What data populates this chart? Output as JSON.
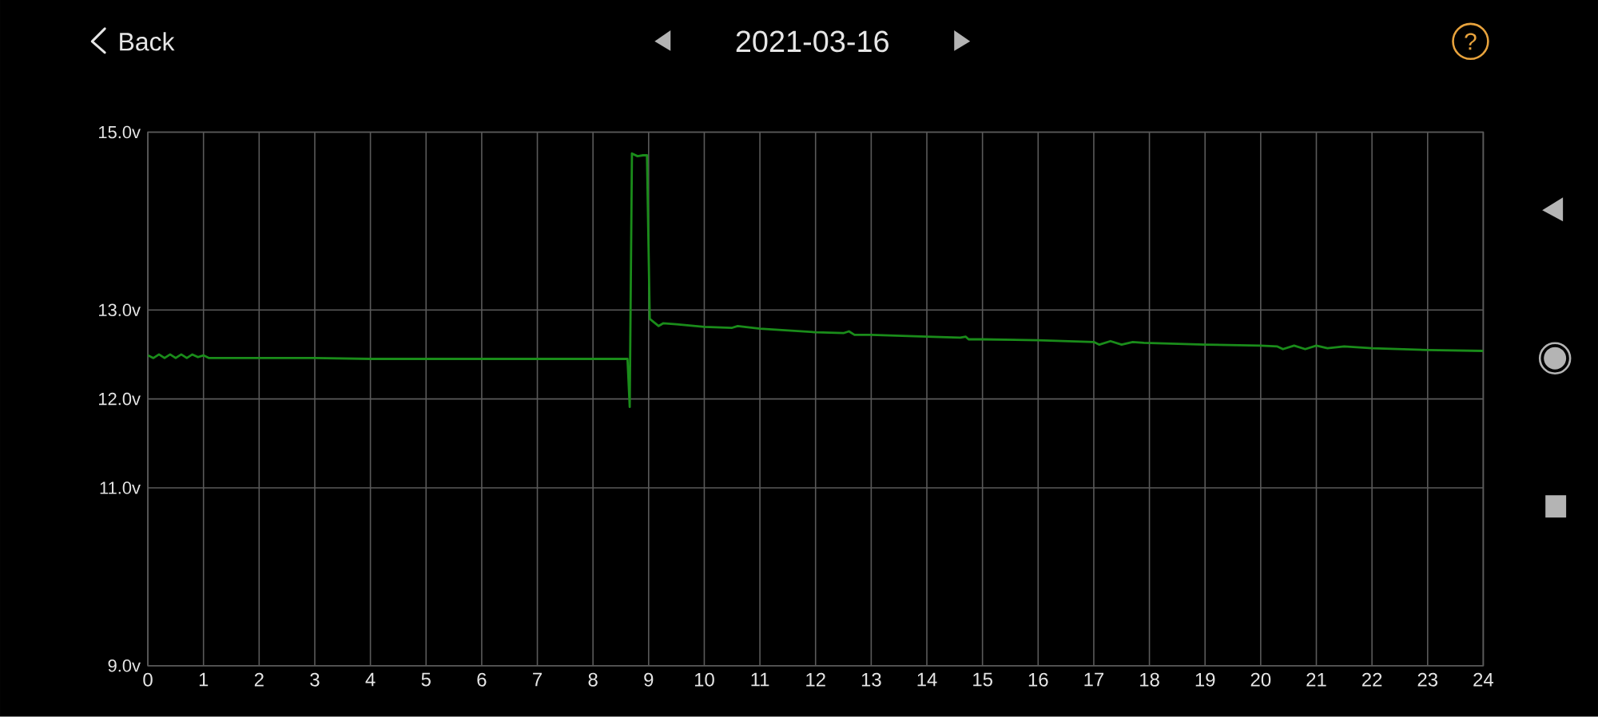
{
  "chart_data": {
    "type": "line",
    "title": "2021-03-16",
    "annotations": [
      "Back",
      "?"
    ],
    "x": [
      0.0,
      0.1,
      0.2,
      0.3,
      0.4,
      0.5,
      0.6,
      0.7,
      0.8,
      0.9,
      1.0,
      1.1,
      2.0,
      3.0,
      4.0,
      5.0,
      6.0,
      7.0,
      8.0,
      8.62,
      8.66,
      8.7,
      8.8,
      8.9,
      8.97,
      9.02,
      9.18,
      9.26,
      9.5,
      10.0,
      10.5,
      10.6,
      11.0,
      12.0,
      12.5,
      12.6,
      12.7,
      13.0,
      14.0,
      14.6,
      14.7,
      14.75,
      15.0,
      16.0,
      17.0,
      17.1,
      17.3,
      17.5,
      17.7,
      17.9,
      19.0,
      20.0,
      20.3,
      20.4,
      20.6,
      20.8,
      21.0,
      21.2,
      21.5,
      22.0,
      23.0,
      24.0
    ],
    "series": [
      {
        "color": "#1a8c1a",
        "values": [
          12.49,
          12.46,
          12.5,
          12.46,
          12.5,
          12.46,
          12.5,
          12.46,
          12.5,
          12.47,
          12.49,
          12.46,
          12.46,
          12.46,
          12.45,
          12.45,
          12.45,
          12.45,
          12.45,
          12.45,
          11.91,
          14.76,
          14.73,
          14.74,
          14.74,
          12.9,
          12.82,
          12.85,
          12.84,
          12.81,
          12.8,
          12.82,
          12.79,
          12.75,
          12.74,
          12.76,
          12.72,
          12.72,
          12.7,
          12.69,
          12.7,
          12.67,
          12.67,
          12.66,
          12.64,
          12.61,
          12.65,
          12.61,
          12.64,
          12.63,
          12.61,
          12.6,
          12.59,
          12.56,
          12.6,
          12.56,
          12.6,
          12.57,
          12.59,
          12.57,
          12.55,
          12.54
        ]
      }
    ],
    "line_style": "solid",
    "xlim": [
      0,
      24
    ],
    "xticks": [
      0,
      1,
      2,
      3,
      4,
      5,
      6,
      7,
      8,
      9,
      10,
      11,
      12,
      13,
      14,
      15,
      16,
      17,
      18,
      19,
      20,
      21,
      22,
      23,
      24
    ],
    "ylim": [
      9,
      15
    ],
    "yticks": [
      {
        "value": 9,
        "label": "9.0v"
      },
      {
        "value": 11,
        "label": "11.0v"
      },
      {
        "value": 12,
        "label": "12.0v"
      },
      {
        "value": 13,
        "label": "13.0v"
      },
      {
        "value": 15,
        "label": "15.0v"
      }
    ],
    "grid": true
  }
}
